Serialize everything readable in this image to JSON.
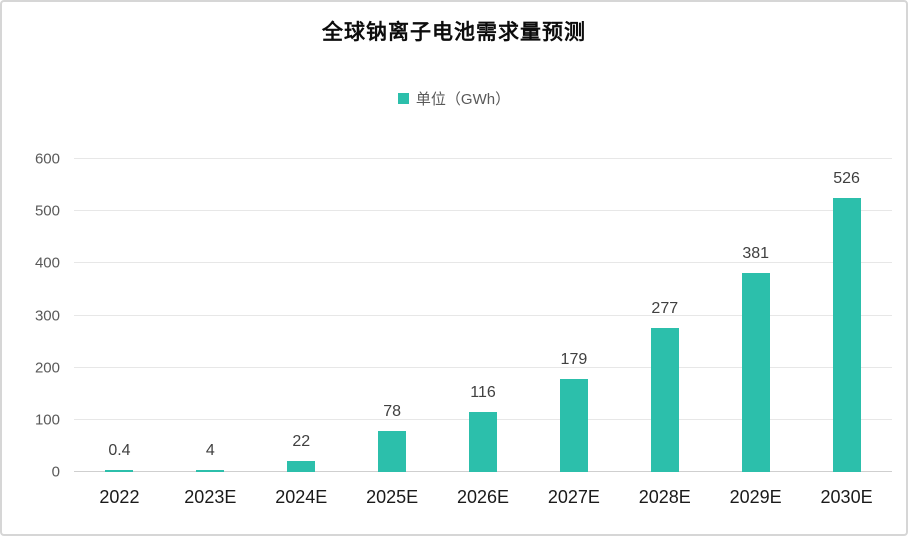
{
  "header": {
    "title": "全球钠离子电池需求量预测"
  },
  "legend": {
    "label": "单位（GWh）",
    "swatch_color": "#2cbfab"
  },
  "chart_data": {
    "type": "bar",
    "title": "全球钠离子电池需求量预测",
    "series_name": "单位（GWh）",
    "unit": "GWh",
    "categories": [
      "2022",
      "2023E",
      "2024E",
      "2025E",
      "2026E",
      "2027E",
      "2028E",
      "2029E",
      "2030E"
    ],
    "values": [
      0.4,
      4,
      22,
      78,
      116,
      179,
      277,
      381,
      526
    ],
    "value_labels": [
      "0.4",
      "4",
      "22",
      "78",
      "116",
      "179",
      "277",
      "381",
      "526"
    ],
    "xlabel": "",
    "ylabel": "",
    "ylim": [
      0,
      600
    ],
    "yticks": [
      0,
      100,
      200,
      300,
      400,
      500,
      600
    ],
    "grid": true,
    "bar_color": "#2cbfab",
    "gridline_color": "#e7e7e7",
    "axis_line_color": "#cfcfcf",
    "legend_position": "top-center"
  }
}
